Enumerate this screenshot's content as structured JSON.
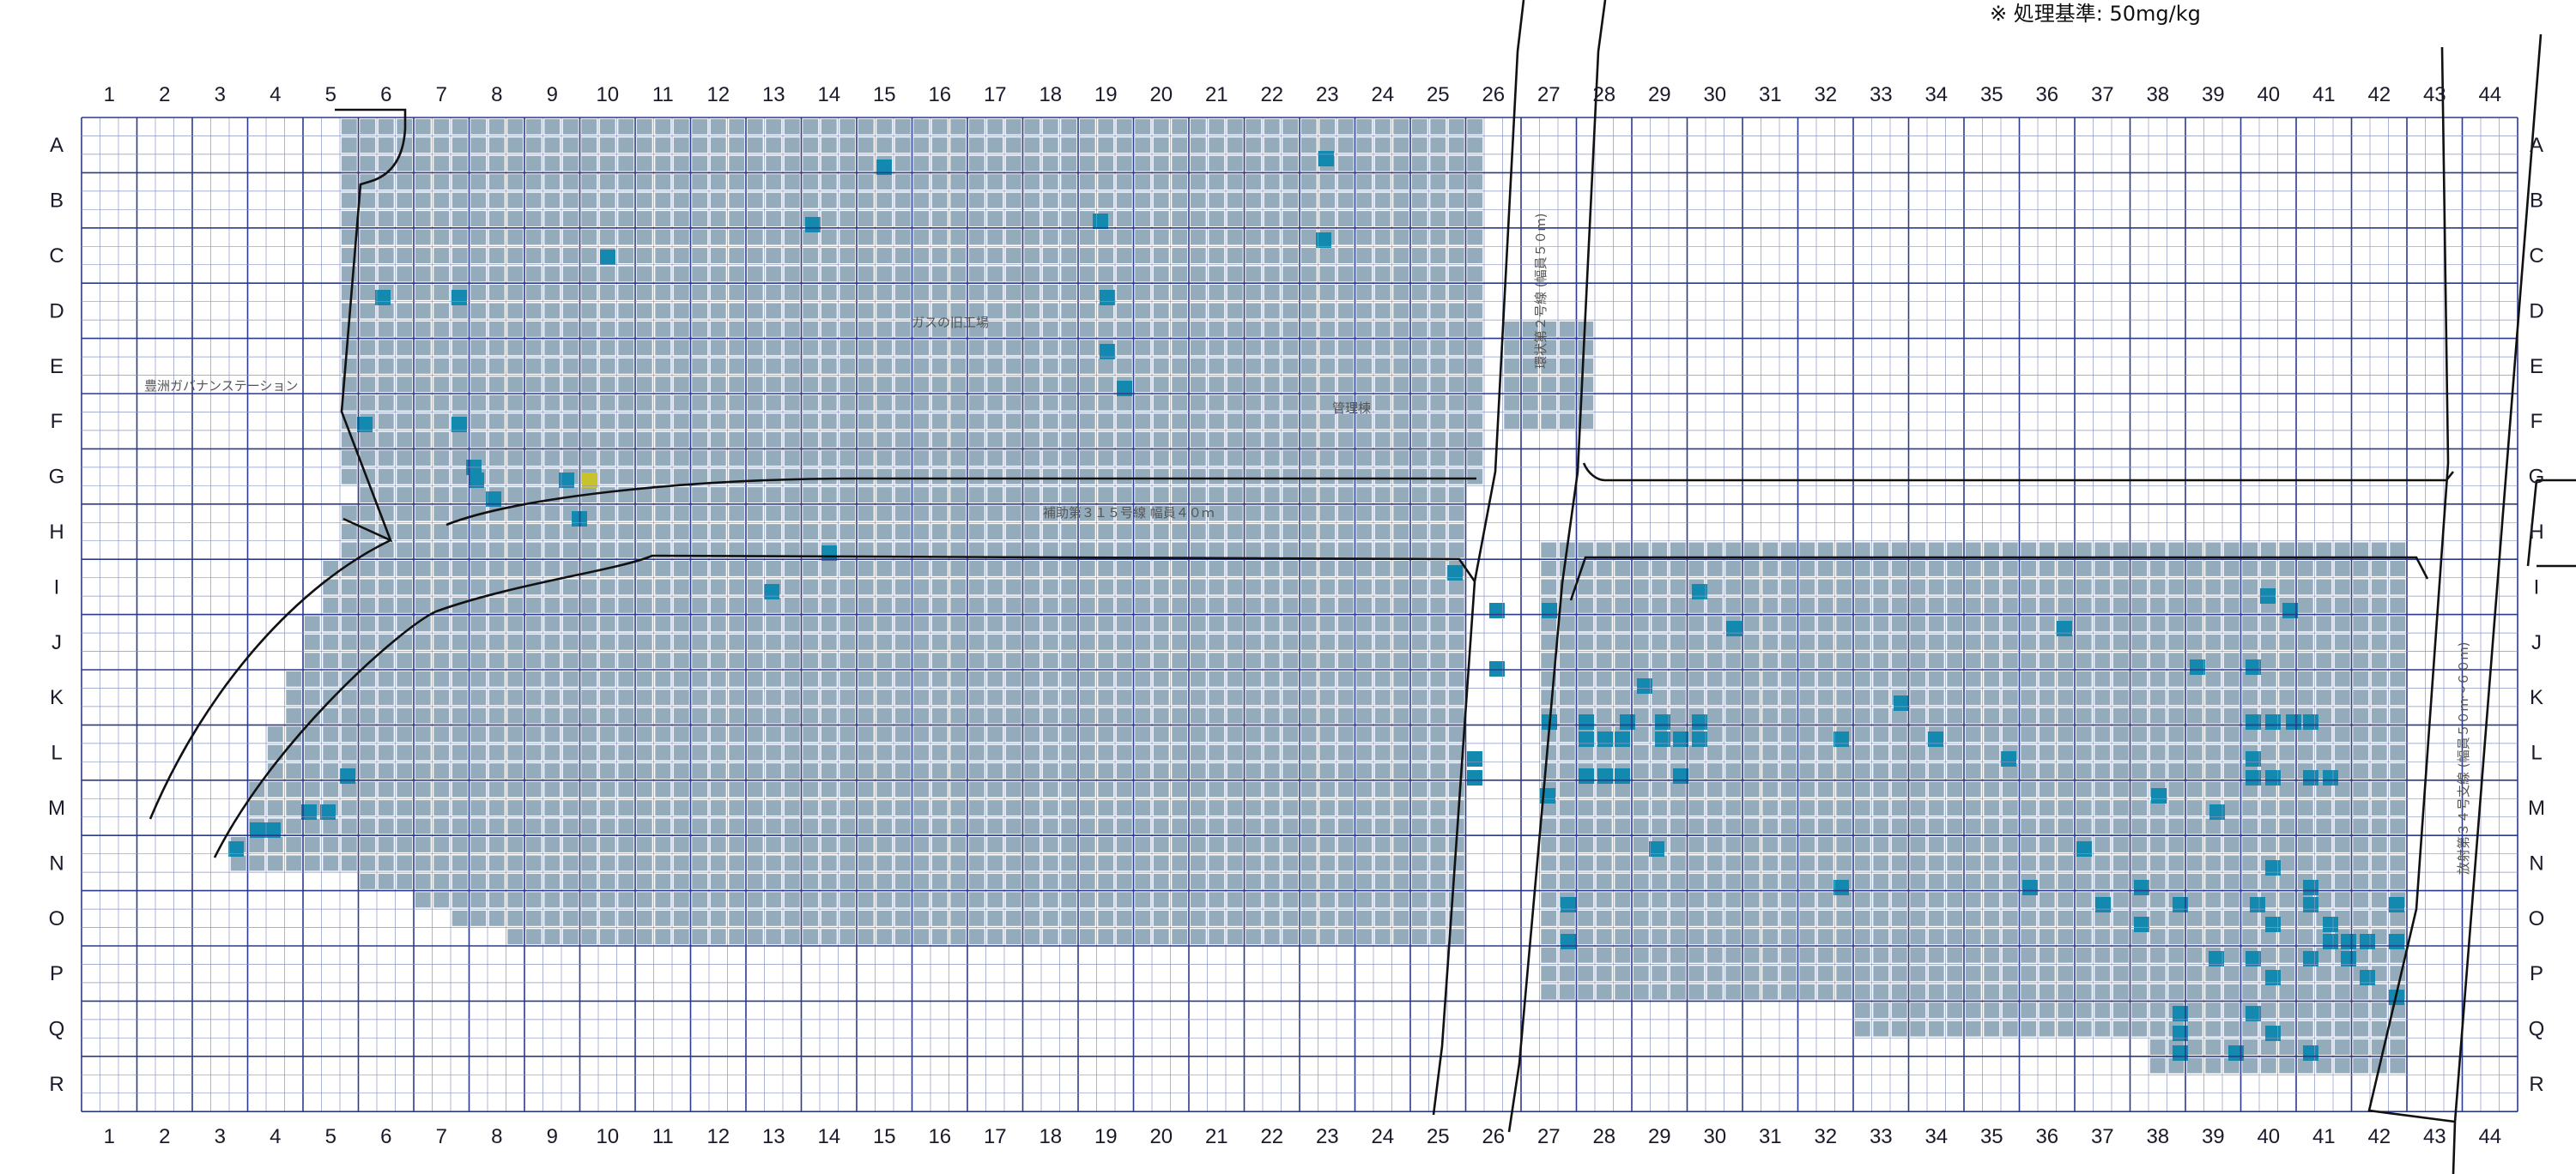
{
  "standard_note": "※ 処理基準: 50mg/kg",
  "columns": [
    "1",
    "2",
    "3",
    "4",
    "5",
    "6",
    "7",
    "8",
    "9",
    "10",
    "11",
    "12",
    "13",
    "14",
    "15",
    "16",
    "17",
    "18",
    "19",
    "20",
    "21",
    "22",
    "23",
    "24",
    "25",
    "26",
    "27",
    "28",
    "29",
    "30",
    "31",
    "32",
    "33",
    "34",
    "35",
    "36",
    "37",
    "38",
    "39",
    "40",
    "41",
    "42",
    "43",
    "44"
  ],
  "rows": [
    "A",
    "B",
    "C",
    "D",
    "E",
    "F",
    "G",
    "H",
    "I",
    "J",
    "K",
    "L",
    "M",
    "N",
    "O",
    "P",
    "Q",
    "R"
  ],
  "labels": {
    "station": "豊洲ガバナンステーション",
    "gas_plant": "ガスの旧工場",
    "manage": "管理棟",
    "road_5": "補助第３１５号線 幅員４０ｍ",
    "road_2": "環状第２号線 (幅員５０ｍ)",
    "road_34": "放射第３４号支線 (幅員５０ｍ〜６０ｍ)"
  },
  "colors": {
    "grid_major": "#2b3a8a",
    "grid_minor": "#8a96c4",
    "cell_survey": "#94abbb",
    "cell_exceed": "#1489b0",
    "cell_special": "#c8c32a",
    "boundary": "#111111"
  }
}
